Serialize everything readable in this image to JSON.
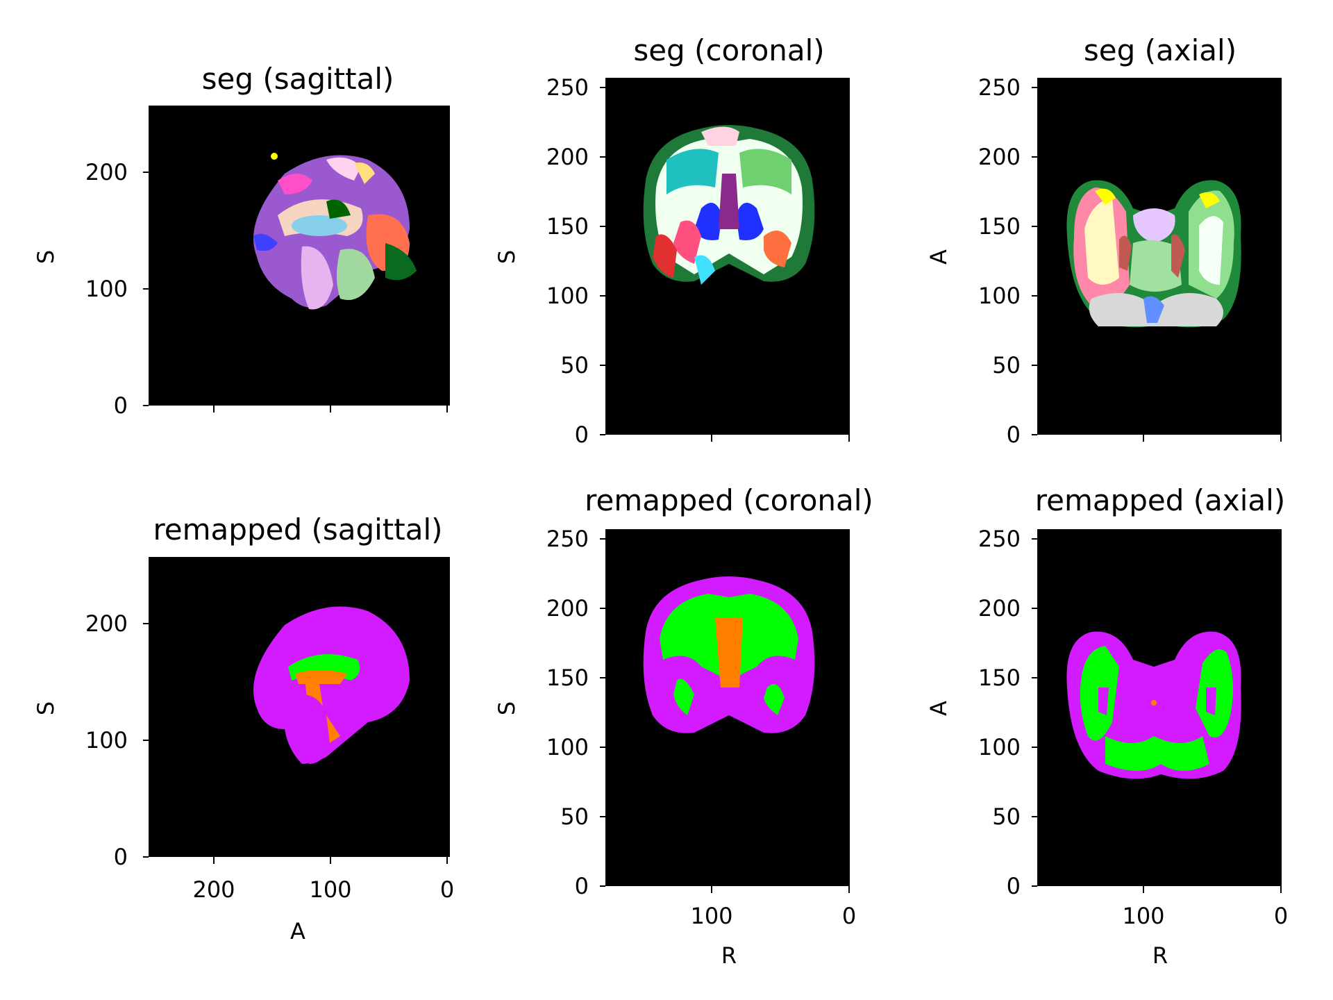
{
  "panels": [
    {
      "title": "seg (sagittal)",
      "row": 0,
      "col": 0,
      "ylabel": "S",
      "xlabel": "",
      "yticks": [
        "200",
        "100",
        "0"
      ],
      "xticks": [],
      "image": "segmentation-sagittal-brain"
    },
    {
      "title": "seg (coronal)",
      "row": 0,
      "col": 1,
      "ylabel": "S",
      "xlabel": "",
      "yticks": [
        "250",
        "200",
        "150",
        "100",
        "50",
        "0"
      ],
      "xticks": [],
      "image": "segmentation-coronal-brain"
    },
    {
      "title": "seg (axial)",
      "row": 0,
      "col": 2,
      "ylabel": "A",
      "xlabel": "",
      "yticks": [
        "250",
        "200",
        "150",
        "100",
        "50",
        "0"
      ],
      "xticks": [],
      "image": "segmentation-axial-brain"
    },
    {
      "title": "remapped (sagittal)",
      "row": 1,
      "col": 0,
      "ylabel": "S",
      "xlabel": "A",
      "yticks": [
        "200",
        "100",
        "0"
      ],
      "xticks": [
        "200",
        "100",
        "0"
      ],
      "image": "remapped-sagittal-brain"
    },
    {
      "title": "remapped (coronal)",
      "row": 1,
      "col": 1,
      "ylabel": "S",
      "xlabel": "R",
      "yticks": [
        "250",
        "200",
        "150",
        "100",
        "50",
        "0"
      ],
      "xticks": [
        "100",
        "0"
      ],
      "image": "remapped-coronal-brain"
    },
    {
      "title": "remapped (axial)",
      "row": 1,
      "col": 2,
      "ylabel": "A",
      "xlabel": "R",
      "yticks": [
        "250",
        "200",
        "150",
        "100",
        "50",
        "0"
      ],
      "xticks": [
        "100",
        "0"
      ],
      "image": "remapped-axial-brain"
    }
  ],
  "colors": {
    "background": "#000000",
    "remap_cortex": "#d21bff",
    "remap_white_matter": "#00ff00",
    "remap_ventricle": "#ff8000"
  }
}
